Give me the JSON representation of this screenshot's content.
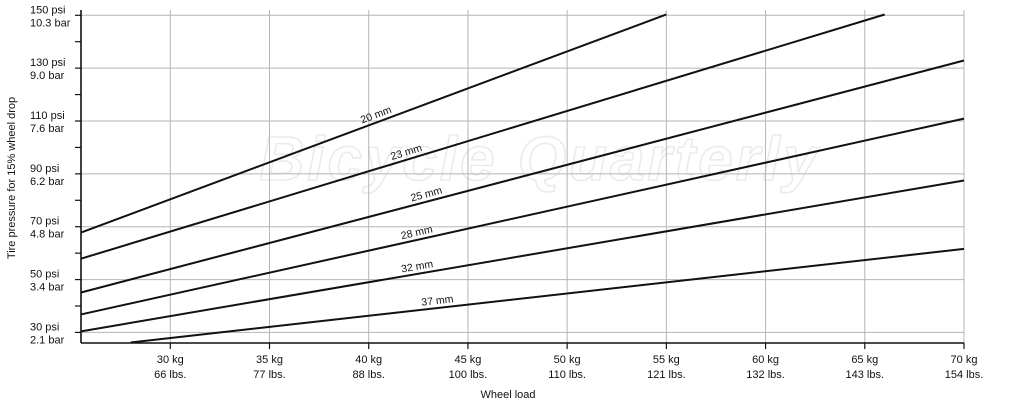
{
  "chart_data": {
    "type": "line",
    "watermark": "Bicycle Quarterly",
    "xlabel": "Wheel load",
    "ylabel": "Tire pressure for 15% wheel drop",
    "xlim": [
      25.5,
      70
    ],
    "ylim": [
      26,
      152
    ],
    "grid": true,
    "x_ticks": [
      {
        "value": 30,
        "label_kg": "30 kg",
        "label_lbs": "66 lbs."
      },
      {
        "value": 35,
        "label_kg": "35 kg",
        "label_lbs": "77 lbs."
      },
      {
        "value": 40,
        "label_kg": "40 kg",
        "label_lbs": "88 lbs."
      },
      {
        "value": 45,
        "label_kg": "45 kg",
        "label_lbs": "100 lbs."
      },
      {
        "value": 50,
        "label_kg": "50 kg",
        "label_lbs": "110 lbs."
      },
      {
        "value": 55,
        "label_kg": "55 kg",
        "label_lbs": "121 lbs."
      },
      {
        "value": 60,
        "label_kg": "60 kg",
        "label_lbs": "132 lbs."
      },
      {
        "value": 65,
        "label_kg": "65 kg",
        "label_lbs": "143 lbs."
      },
      {
        "value": 70,
        "label_kg": "70 kg",
        "label_lbs": "154 lbs."
      }
    ],
    "y_ticks": [
      {
        "value": 30,
        "label_psi": "30 psi",
        "label_bar": "2.1 bar"
      },
      {
        "value": 50,
        "label_psi": "50 psi",
        "label_bar": "3.4 bar"
      },
      {
        "value": 70,
        "label_psi": "70 psi",
        "label_bar": "4.8 bar"
      },
      {
        "value": 90,
        "label_psi": "90 psi",
        "label_bar": "6.2 bar"
      },
      {
        "value": 110,
        "label_psi": "110 psi",
        "label_bar": "7.6 bar"
      },
      {
        "value": 130,
        "label_psi": "130 psi",
        "label_bar": "9.0 bar"
      },
      {
        "value": 150,
        "label_psi": "150 psi",
        "label_bar": "10.3 bar"
      }
    ],
    "series": [
      {
        "name": "20 mm",
        "x": [
          25.5,
          55
        ],
        "y": [
          67.8,
          150.3
        ],
        "label_at": 40.5
      },
      {
        "name": "23 mm",
        "x": [
          25.5,
          66
        ],
        "y": [
          57.9,
          150.3
        ],
        "label_at": 42
      },
      {
        "name": "25 mm",
        "x": [
          25.5,
          70
        ],
        "y": [
          45.1,
          132.9
        ],
        "label_at": 43
      },
      {
        "name": "28 mm",
        "x": [
          25.5,
          70
        ],
        "y": [
          36.8,
          110.9
        ],
        "label_at": 42.5
      },
      {
        "name": "32 mm",
        "x": [
          25.5,
          70
        ],
        "y": [
          30.4,
          87.5
        ],
        "label_at": 42.5
      },
      {
        "name": "37 mm",
        "x": [
          28,
          70
        ],
        "y": [
          26.2,
          61.6
        ],
        "label_at": 43.5
      }
    ]
  }
}
